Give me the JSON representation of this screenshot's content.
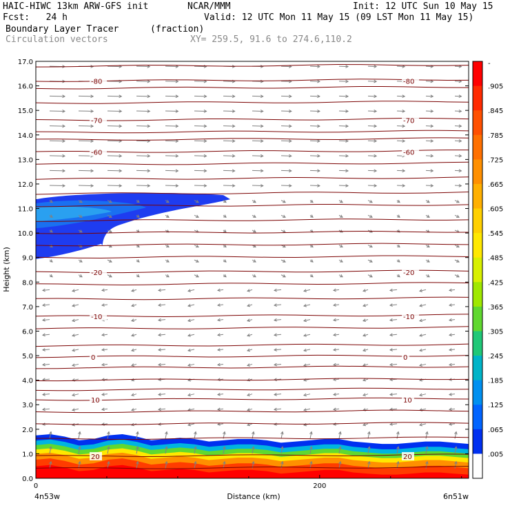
{
  "header": {
    "model_title": "HAIC-HIWC 13km ARW-GFS init",
    "org": "NCAR/MMM",
    "init": "Init: 12 UTC Sun 10 May 15",
    "fcst": "Fcst:   24 h",
    "valid": "Valid: 12 UTC Mon 11 May 15 (09 LST Mon 11 May 15)",
    "field_name": "Boundary Layer Tracer",
    "field_units": "(fraction)",
    "vector_name": "Circulation vectors",
    "xy_range": "XY= 259.5, 91.6 to 274.6,110.2"
  },
  "chart_data": {
    "type": "heatmap",
    "xlabel": "Distance (km)",
    "ylabel": "Height (km)",
    "xlim": [
      0,
      305
    ],
    "ylim": [
      0,
      17
    ],
    "x_ticks": [
      0,
      200
    ],
    "x_end_labels": [
      "4n53w",
      "6n51w"
    ],
    "y_ticks": [
      "0.0",
      "1.0",
      "2.0",
      "3.0",
      "4.0",
      "5.0",
      "6.0",
      "7.0",
      "8.0",
      "9.0",
      "10.0",
      "11.0",
      "12.0",
      "13.0",
      "14.0",
      "15.0",
      "16.0",
      "17.0"
    ],
    "colorbar": {
      "labels": [
        "-",
        ".905",
        ".845",
        ".785",
        ".725",
        ".665",
        ".605",
        ".545",
        ".485",
        ".425",
        ".365",
        ".305",
        ".245",
        ".185",
        ".125",
        ".065",
        ".005"
      ],
      "colors": [
        "#ff0000",
        "#ff2a00",
        "#ff5000",
        "#ff7000",
        "#ff9000",
        "#ffb000",
        "#ffd000",
        "#ffe800",
        "#d8f000",
        "#a0e800",
        "#60d830",
        "#20c878",
        "#00b4c8",
        "#0090f0",
        "#0064ff",
        "#0030f0",
        "#ffffff"
      ]
    },
    "contours": {
      "field": "temperature",
      "levels": [
        {
          "value": -80,
          "label": "-80",
          "height_km": 16.2
        },
        {
          "value": -70,
          "label": "-70",
          "height_km": 14.6
        },
        {
          "value": -60,
          "label": "-60",
          "height_km": 13.3
        },
        {
          "value": -20,
          "label": "-20",
          "height_km": 8.4
        },
        {
          "value": -10,
          "label": "-10",
          "height_km": 6.6
        },
        {
          "value": 0,
          "label": "0",
          "height_km": 4.95
        },
        {
          "value": 10,
          "label": "10",
          "height_km": 3.2
        },
        {
          "value": 20,
          "label": "20",
          "height_km": 0.9
        }
      ],
      "unlabeled_heights_km": [
        16.8,
        15.9,
        15.3,
        14.1,
        13.8,
        12.8,
        12.2,
        11.6,
        11.1,
        10.5,
        10.0,
        9.5,
        9.0,
        7.9,
        7.3,
        6.1,
        5.4,
        4.5,
        4.0,
        3.6,
        2.7,
        2.2,
        1.6,
        0.4
      ]
    },
    "tracer_surface_layer": {
      "top_km": [
        1.75,
        1.8,
        1.7,
        1.55,
        1.6,
        1.75,
        1.8,
        1.7,
        1.55,
        1.6,
        1.65,
        1.6,
        1.5,
        1.55,
        1.6,
        1.6,
        1.55,
        1.45,
        1.5,
        1.55,
        1.6,
        1.6,
        1.5,
        1.45,
        1.4,
        1.4,
        1.45,
        1.5,
        1.5,
        1.45,
        1.4
      ]
    },
    "tracer_upper_anvil": {
      "x_extent_km": [
        0,
        137
      ],
      "base_km": 9.0,
      "top_km": 11.6
    }
  }
}
